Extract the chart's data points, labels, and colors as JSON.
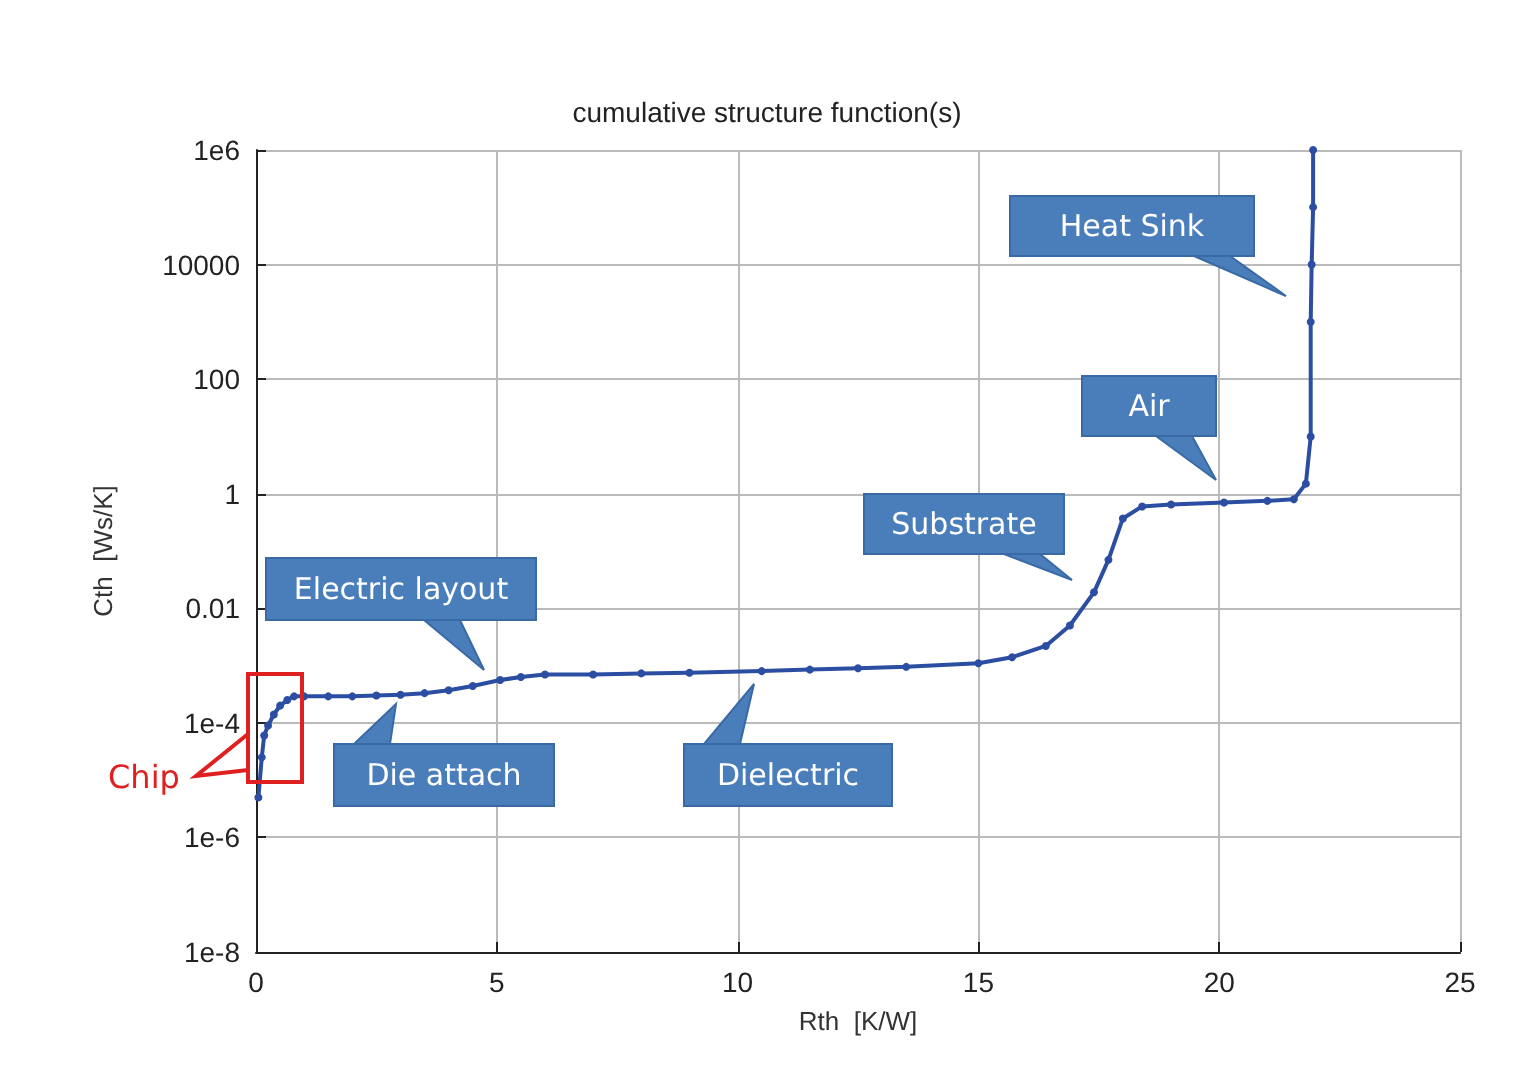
{
  "chart_data": {
    "type": "line",
    "title": "cumulative structure function(s)",
    "xlabel": "Rth  [K/W]",
    "ylabel": "Cth  [Ws/K]",
    "x": [
      0.05,
      0.12,
      0.17,
      0.25,
      0.37,
      0.5,
      0.65,
      0.79,
      1.0,
      1.5,
      2.0,
      2.5,
      3.0,
      3.5,
      4.0,
      4.5,
      5.07,
      5.5,
      6.0,
      7.0,
      8.0,
      9.0,
      10.5,
      11.5,
      12.5,
      13.5,
      15.0,
      15.7,
      16.4,
      16.9,
      17.4,
      17.7,
      18.0,
      18.4,
      19.0,
      20.1,
      21.0,
      21.55,
      21.8,
      21.9,
      21.9,
      21.92,
      21.95,
      21.95
    ],
    "series": [
      {
        "color": "#2b4ea2",
        "values": [
          5e-06,
          2.5e-05,
          6e-05,
          9e-05,
          0.00014,
          0.0002,
          0.00025,
          0.00029,
          0.00029,
          0.00029,
          0.00029,
          0.0003,
          0.00031,
          0.00033,
          0.00037,
          0.00044,
          0.00056,
          0.00063,
          0.0007,
          0.0007,
          0.00073,
          0.00075,
          0.0008,
          0.00085,
          0.0009,
          0.00095,
          0.0011,
          0.0014,
          0.0022,
          0.005,
          0.019,
          0.07,
          0.37,
          0.6,
          0.65,
          0.7,
          0.75,
          0.8,
          1.5,
          10,
          1000,
          10000.0,
          100000.0,
          1000000.0
        ]
      }
    ],
    "xlim": [
      0,
      25
    ],
    "xticks": [
      0,
      5,
      10,
      15,
      20,
      25
    ],
    "ylim": [
      1e-08,
      1000000.0
    ],
    "yticks": [
      {
        "value": 1e-08,
        "label": "1e-8"
      },
      {
        "value": 1e-06,
        "label": "1e-6"
      },
      {
        "value": 0.0001,
        "label": "1e-4"
      },
      0.01,
      1,
      100,
      10000,
      {
        "value": 1000000.0,
        "label": "1e6"
      }
    ],
    "log": "y",
    "grid": true,
    "marker": "circle",
    "line_style": "solid",
    "annotations": [
      "Heat Sink",
      "Air",
      "Substrate",
      "Electric layout",
      "Die attach",
      "Dielectric",
      "Chip"
    ]
  }
}
